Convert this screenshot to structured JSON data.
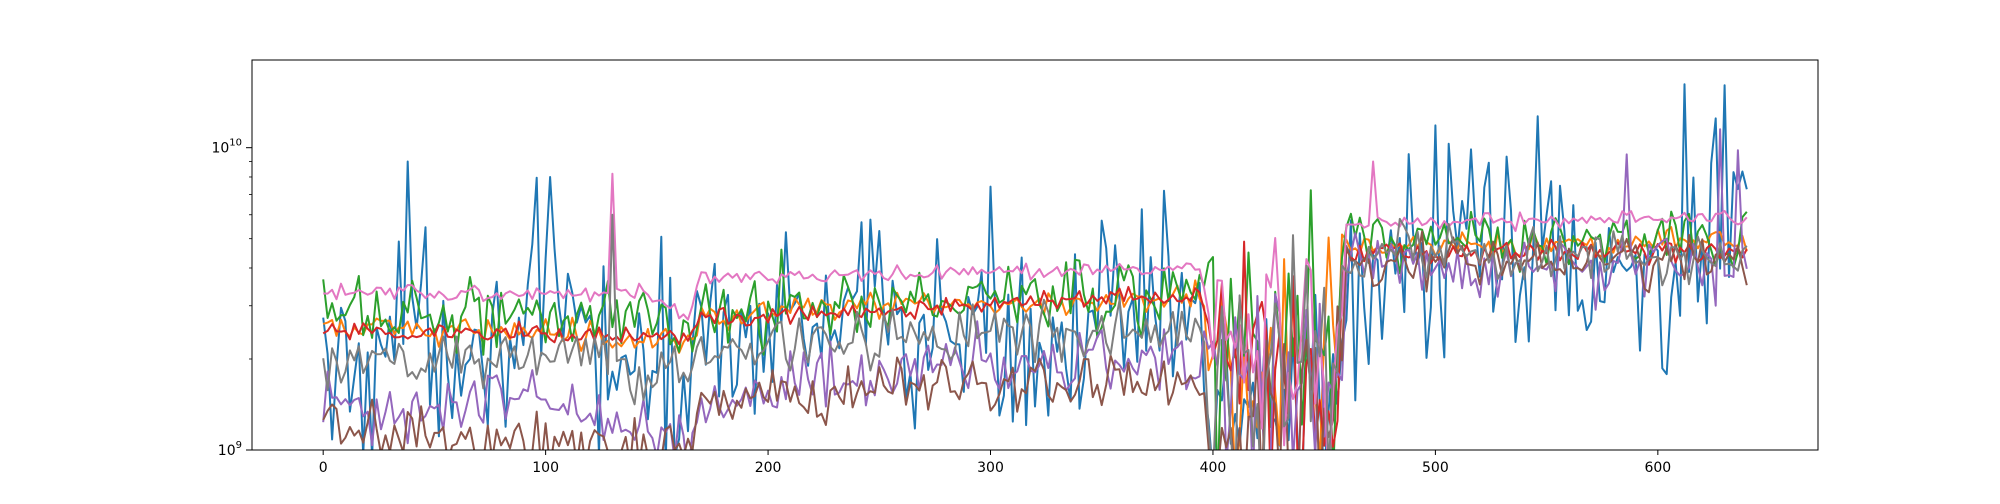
{
  "chart_data": {
    "type": "line",
    "title": "",
    "xlabel": "",
    "ylabel": "",
    "xlim": [
      -32,
      672
    ],
    "ylim": [
      1000000000,
      19500000000
    ],
    "yscale": "log",
    "grid": false,
    "legend": "none",
    "x_ticks": [
      {
        "value": 0,
        "label": "0"
      },
      {
        "value": 100,
        "label": "100"
      },
      {
        "value": 200,
        "label": "200"
      },
      {
        "value": 300,
        "label": "300"
      },
      {
        "value": 400,
        "label": "400"
      },
      {
        "value": 500,
        "label": "500"
      },
      {
        "value": 600,
        "label": "600"
      }
    ],
    "y_ticks": [
      {
        "value": 1000000000,
        "base": "10",
        "exp": "9"
      },
      {
        "value": 10000000000,
        "base": "10",
        "exp": "10"
      }
    ],
    "x": {
      "start": 0,
      "end": 640,
      "step": 2
    },
    "series": [
      {
        "color": "#1f77b4",
        "segments": [
          [
            0,
            1600000000.0
          ],
          [
            30,
            2400000000.0
          ],
          [
            100,
            2600000000.0
          ],
          [
            165,
            1600000000.0
          ],
          [
            170,
            2600000000.0
          ],
          [
            300,
            2500000000.0
          ],
          [
            395,
            2500000000.0
          ],
          [
            400,
            1500000000.0
          ],
          [
            455,
            1500000000.0
          ],
          [
            460,
            4000000000.0
          ],
          [
            640,
            4000000000.0
          ]
        ],
        "noise": 0.38,
        "spikes": [
          [
            37,
            9000000000.0
          ],
          [
            101,
            8000000000.0
          ],
          [
            250,
            5300000000.0
          ],
          [
            378,
            7200000000.0
          ],
          [
            505,
            10300000000.0
          ],
          [
            546,
            12700000000.0
          ],
          [
            612,
            16200000000.0
          ],
          [
            625,
            12500000000.0
          ]
        ]
      },
      {
        "color": "#ff7f0e",
        "segments": [
          [
            0,
            2500000000.0
          ],
          [
            100,
            2500000000.0
          ],
          [
            165,
            2300000000.0
          ],
          [
            170,
            2800000000.0
          ],
          [
            300,
            3050000000.0
          ],
          [
            395,
            3200000000.0
          ],
          [
            400,
            2000000000.0
          ],
          [
            455,
            2000000000.0
          ],
          [
            460,
            4600000000.0
          ],
          [
            640,
            4900000000.0
          ]
        ],
        "noise": 0.05,
        "spikes": []
      },
      {
        "color": "#2ca02c",
        "segments": [
          [
            0,
            2800000000.0
          ],
          [
            100,
            2900000000.0
          ],
          [
            165,
            2500000000.0
          ],
          [
            170,
            2900000000.0
          ],
          [
            300,
            3150000000.0
          ],
          [
            395,
            3200000000.0
          ],
          [
            400,
            2200000000.0
          ],
          [
            455,
            2200000000.0
          ],
          [
            460,
            5000000000.0
          ],
          [
            640,
            5000000000.0
          ]
        ],
        "noise": 0.13,
        "spikes": [
          [
            205,
            4600000000.0
          ],
          [
            415,
            4500000000.0
          ]
        ]
      },
      {
        "color": "#d62728",
        "segments": [
          [
            0,
            2450000000.0
          ],
          [
            100,
            2450000000.0
          ],
          [
            165,
            2300000000.0
          ],
          [
            170,
            2750000000.0
          ],
          [
            300,
            3050000000.0
          ],
          [
            395,
            3200000000.0
          ],
          [
            400,
            2000000000.0
          ],
          [
            455,
            2000000000.0
          ],
          [
            460,
            4500000000.0
          ],
          [
            640,
            4600000000.0
          ]
        ],
        "noise": 0.04,
        "spikes": []
      },
      {
        "color": "#9467bd",
        "segments": [
          [
            0,
            1350000000.0
          ],
          [
            100,
            1500000000.0
          ],
          [
            165,
            1050000000.0
          ],
          [
            170,
            1500000000.0
          ],
          [
            300,
            1950000000.0
          ],
          [
            395,
            2000000000.0
          ],
          [
            400,
            1500000000.0
          ],
          [
            455,
            1500000000.0
          ],
          [
            460,
            4200000000.0
          ],
          [
            640,
            4000000000.0
          ]
        ],
        "noise": 0.12,
        "spikes": [
          [
            585,
            9500000000.0
          ],
          [
            627,
            11500000000.0
          ],
          [
            636,
            9800000000.0
          ]
        ]
      },
      {
        "color": "#8c564b",
        "segments": [
          [
            0,
            1200000000.0
          ],
          [
            100,
            1050000000.0
          ],
          [
            165,
            1000000000.0
          ],
          [
            170,
            1450000000.0
          ],
          [
            300,
            1650000000.0
          ],
          [
            395,
            1750000000.0
          ],
          [
            400,
            1300000000.0
          ],
          [
            455,
            1300000000.0
          ],
          [
            460,
            4200000000.0
          ],
          [
            640,
            4200000000.0
          ]
        ],
        "noise": 0.1,
        "spikes": []
      },
      {
        "color": "#e377c2",
        "segments": [
          [
            0,
            3300000000.0
          ],
          [
            100,
            3300000000.0
          ],
          [
            140,
            3400000000.0
          ],
          [
            165,
            2800000000.0
          ],
          [
            170,
            3700000000.0
          ],
          [
            300,
            3850000000.0
          ],
          [
            395,
            4000000000.0
          ],
          [
            400,
            2400000000.0
          ],
          [
            455,
            2400000000.0
          ],
          [
            460,
            5600000000.0
          ],
          [
            640,
            5900000000.0
          ]
        ],
        "noise": 0.03,
        "spikes": [
          [
            130,
            8200000000.0
          ],
          [
            472,
            9000000000.0
          ]
        ]
      },
      {
        "color": "#7f7f7f",
        "segments": [
          [
            0,
            1800000000.0
          ],
          [
            100,
            2100000000.0
          ],
          [
            165,
            1800000000.0
          ],
          [
            170,
            2200000000.0
          ],
          [
            300,
            2450000000.0
          ],
          [
            395,
            2500000000.0
          ],
          [
            400,
            1800000000.0
          ],
          [
            455,
            1800000000.0
          ],
          [
            460,
            4500000000.0
          ],
          [
            640,
            4400000000.0
          ]
        ],
        "noise": 0.1,
        "spikes": [
          [
            130,
            6000000000.0
          ]
        ]
      }
    ]
  }
}
